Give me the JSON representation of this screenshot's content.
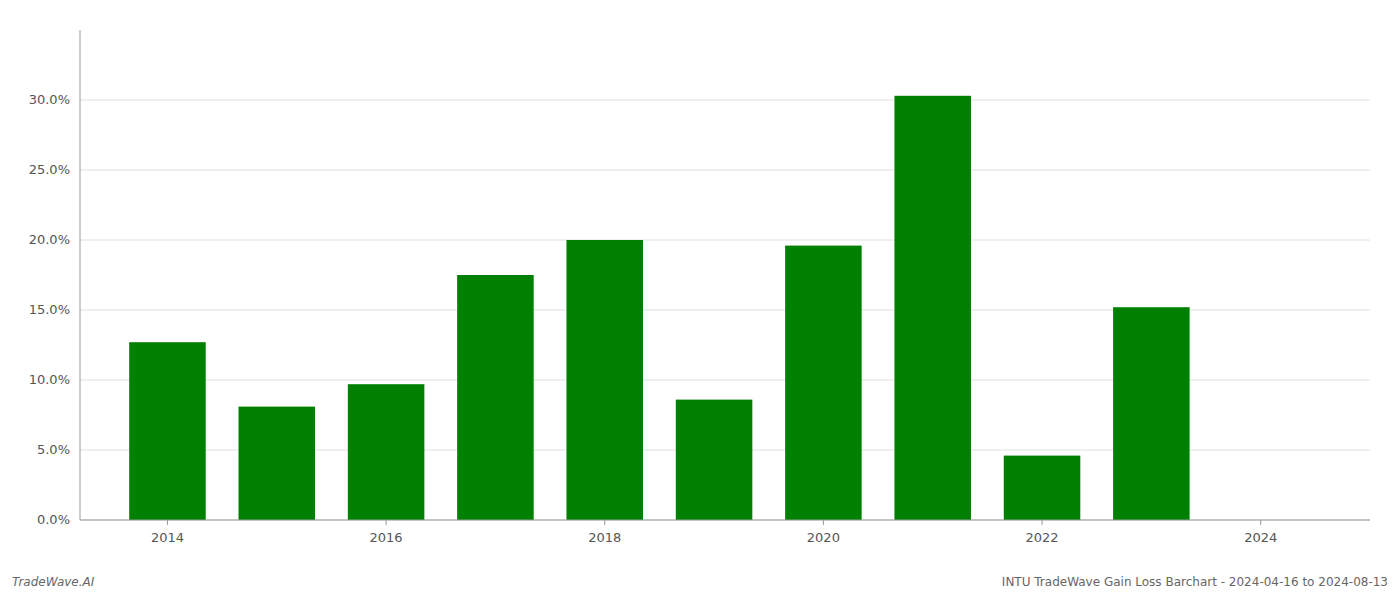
{
  "chart_data": {
    "type": "bar",
    "x": [
      2014,
      2015,
      2016,
      2017,
      2018,
      2019,
      2020,
      2021,
      2022,
      2023,
      2024
    ],
    "values": [
      0.127,
      0.081,
      0.097,
      0.175,
      0.2,
      0.086,
      0.196,
      0.303,
      0.046,
      0.152,
      0.0
    ],
    "color": "#008000",
    "xlim": [
      2013.2,
      2025.0
    ],
    "xticks": [
      2014,
      2016,
      2018,
      2020,
      2022,
      2024
    ],
    "ylim": [
      0,
      0.35
    ],
    "yticks": [
      {
        "value": 0.0,
        "label": "0.0%"
      },
      {
        "value": 0.05,
        "label": "5.0%"
      },
      {
        "value": 0.1,
        "label": "10.0%"
      },
      {
        "value": 0.15,
        "label": "15.0%"
      },
      {
        "value": 0.2,
        "label": "20.0%"
      },
      {
        "value": 0.25,
        "label": "25.0%"
      },
      {
        "value": 0.3,
        "label": "30.0%"
      }
    ],
    "grid": true,
    "annotations": [
      "TradeWave.AI",
      "INTU TradeWave Gain Loss Barchart - 2024-04-16 to 2024-08-13"
    ]
  }
}
